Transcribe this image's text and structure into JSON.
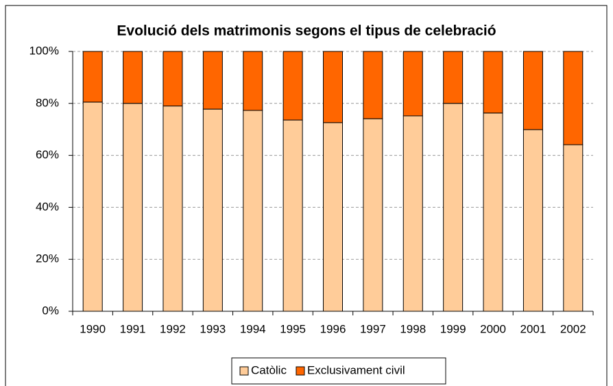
{
  "chart_data": {
    "type": "bar_stacked_100",
    "title": "Evolució dels matrimonis segons el tipus de celebració",
    "categories": [
      "1990",
      "1991",
      "1992",
      "1993",
      "1994",
      "1995",
      "1996",
      "1997",
      "1998",
      "1999",
      "2000",
      "2001",
      "2002"
    ],
    "series": [
      {
        "name": "Catòlic",
        "color": "#ffcc99",
        "values": [
          80.5,
          80,
          79,
          77.8,
          77.3,
          73.6,
          72.6,
          74.1,
          75.2,
          80,
          76.3,
          69.9,
          64.1
        ]
      },
      {
        "name": "Exclusivament civil",
        "color": "#ff6600",
        "values": [
          19.5,
          20,
          21,
          22.2,
          22.7,
          26.4,
          27.4,
          25.9,
          24.8,
          20,
          23.7,
          30.1,
          35.9
        ]
      }
    ],
    "ylim": [
      0,
      100
    ],
    "yticks": [
      {
        "value": 0,
        "label": "0%"
      },
      {
        "value": 20,
        "label": "20%"
      },
      {
        "value": 40,
        "label": "40%"
      },
      {
        "value": 60,
        "label": "60%"
      },
      {
        "value": 80,
        "label": "80%"
      },
      {
        "value": 100,
        "label": "100%"
      }
    ],
    "grid": true,
    "legend": "bottom"
  }
}
